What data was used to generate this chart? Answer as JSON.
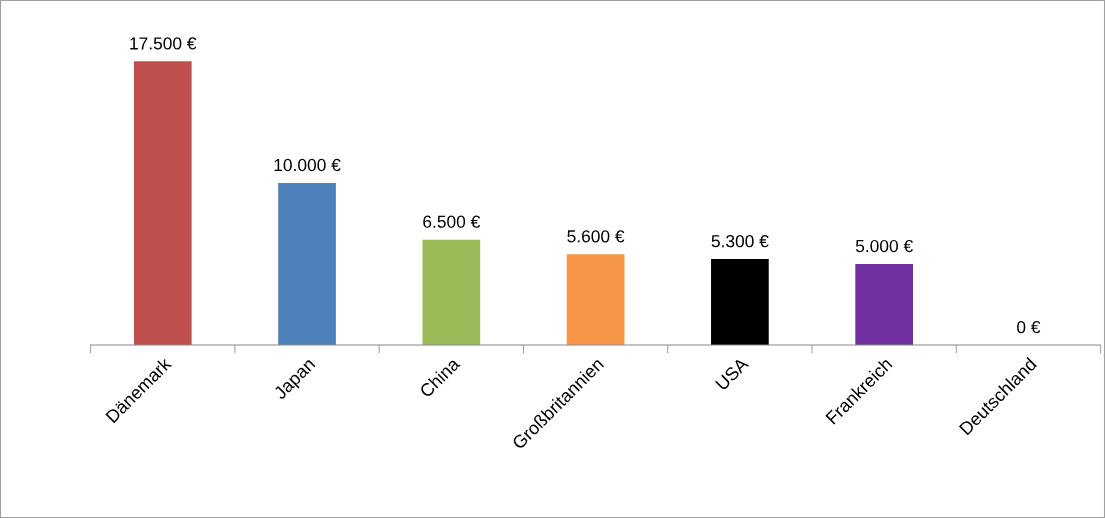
{
  "chart_data": {
    "type": "bar",
    "categories": [
      "Dänemark",
      "Japan",
      "China",
      "Großbritannien",
      "USA",
      "Frankreich",
      "Deutschland"
    ],
    "values": [
      17500,
      10000,
      6500,
      5600,
      5300,
      5000,
      0
    ],
    "colors": [
      "#c0504d",
      "#4f81bd",
      "#9bbb59",
      "#f79646",
      "#000000",
      "#7030a0",
      "#8064a2"
    ],
    "value_labels": [
      "17.500 €",
      "10.000 €",
      "6.500 €",
      "5.600 €",
      "5.300 €",
      "5.000 €",
      "0 €"
    ],
    "grid": false,
    "legend": false
  }
}
